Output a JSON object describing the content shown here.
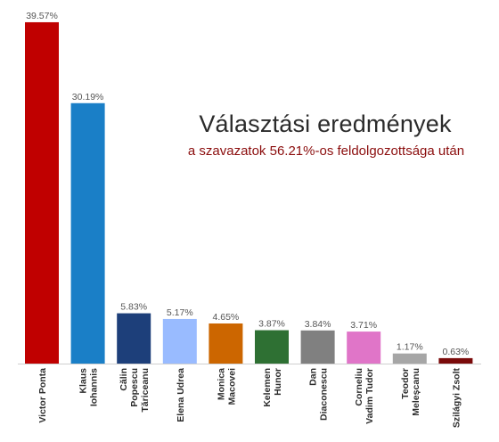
{
  "chart_data": {
    "type": "bar",
    "title": "Választási eredmények",
    "subtitle": "a szavazatok 56.21%-os feldolgozottsága után",
    "categories": [
      [
        "Victor Ponta"
      ],
      [
        "Klaus",
        "Iohannis"
      ],
      [
        "Călin",
        "Popescu",
        "Tăriceanu"
      ],
      [
        "Elena Udrea"
      ],
      [
        "Monica",
        "Macovei"
      ],
      [
        "Kelemen",
        "Hunor"
      ],
      [
        "Dan",
        "Diaconescu"
      ],
      [
        "Corneliu",
        "Vadim Tudor"
      ],
      [
        "Teodor",
        "Meleșcanu"
      ],
      [
        "Szilágyi Zsolt"
      ]
    ],
    "values": [
      39.57,
      30.19,
      5.83,
      5.17,
      4.65,
      3.87,
      3.84,
      3.71,
      1.17,
      0.63
    ],
    "value_labels": [
      "39.57%",
      "30.19%",
      "5.83%",
      "5.17%",
      "4.65%",
      "3.87%",
      "3.84%",
      "3.71%",
      "1.17%",
      "0.63%"
    ],
    "colors": [
      "#c00000",
      "#1a7fc7",
      "#1d3f7a",
      "#99bbff",
      "#cc6600",
      "#2e7033",
      "#808080",
      "#e075c8",
      "#a6a6a6",
      "#7a0a0a"
    ],
    "xlabel": "",
    "ylabel": "",
    "ylim": [
      0,
      40
    ],
    "grid": false,
    "legend": "none"
  }
}
